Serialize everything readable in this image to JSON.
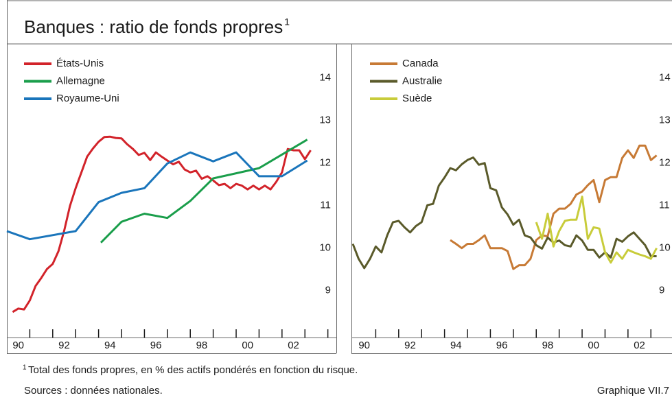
{
  "title": "Banques : ratio de fonds propres",
  "title_note": "1",
  "chart_data": [
    {
      "type": "line",
      "legend": "upper left",
      "xlim": [
        1990,
        2004.37
      ],
      "ylim": [
        7.9,
        14.8
      ],
      "yticks": [
        9,
        10,
        11,
        12,
        13,
        14
      ],
      "xticks": [
        {
          "value": 1990.5,
          "label": "90"
        },
        {
          "value": 1992.5,
          "label": "92"
        },
        {
          "value": 1994.5,
          "label": "94"
        },
        {
          "value": 1996.5,
          "label": "96"
        },
        {
          "value": 1998.5,
          "label": "98"
        },
        {
          "value": 2000.5,
          "label": "00"
        },
        {
          "value": 2002.5,
          "label": "02"
        }
      ],
      "xtick_marks": [
        1991,
        1992,
        1993,
        1994,
        1995,
        1996,
        1997,
        1998,
        1999,
        2000,
        2001,
        2002,
        2003,
        2004
      ],
      "series": [
        {
          "name": "États-Unis",
          "color": "#d2232a",
          "x": [
            1990.25,
            1990.5,
            1990.75,
            1991,
            1991.25,
            1991.5,
            1991.75,
            1992,
            1992.25,
            1992.5,
            1992.75,
            1993,
            1993.25,
            1993.5,
            1993.75,
            1994,
            1994.25,
            1994.5,
            1994.75,
            1995,
            1995.25,
            1995.5,
            1995.75,
            1996,
            1996.25,
            1996.5,
            1996.75,
            1997,
            1997.25,
            1997.5,
            1997.75,
            1998,
            1998.25,
            1998.5,
            1998.75,
            1999,
            1999.25,
            1999.5,
            1999.75,
            2000,
            2000.25,
            2000.5,
            2000.75,
            2001,
            2001.25,
            2001.5,
            2001.75,
            2002,
            2002.25,
            2002.5,
            2002.75,
            2003,
            2003.25
          ],
          "values": [
            8.5,
            8.58,
            8.56,
            8.77,
            9.11,
            9.3,
            9.51,
            9.63,
            9.93,
            10.41,
            10.99,
            11.41,
            11.78,
            12.15,
            12.34,
            12.5,
            12.61,
            12.62,
            12.59,
            12.58,
            12.44,
            12.33,
            12.19,
            12.24,
            12.07,
            12.25,
            12.15,
            12.06,
            11.97,
            12.03,
            11.85,
            11.78,
            11.82,
            11.63,
            11.69,
            11.59,
            11.48,
            11.51,
            11.41,
            11.51,
            11.47,
            11.38,
            11.47,
            11.38,
            11.47,
            11.38,
            11.56,
            11.78,
            12.33,
            12.3,
            12.3,
            12.09,
            12.3
          ]
        },
        {
          "name": "Allemagne",
          "color": "#1a9e4b",
          "x": [
            1994.1,
            1995,
            1996,
            1997,
            1998,
            1999,
            2000,
            2001,
            2002,
            2003.1
          ],
          "values": [
            10.13,
            10.62,
            10.81,
            10.71,
            11.11,
            11.64,
            11.76,
            11.88,
            12.2,
            12.55
          ]
        },
        {
          "name": "Royaume-Uni",
          "color": "#1a75bb",
          "x": [
            1990,
            1991,
            1993,
            1994,
            1995,
            1996,
            1997,
            1998,
            1999,
            2000,
            2001,
            2002,
            2003.1
          ],
          "values": [
            10.4,
            10.21,
            10.4,
            11.08,
            11.3,
            11.41,
            11.99,
            12.25,
            12.04,
            12.25,
            11.69,
            11.69,
            12.06
          ]
        }
      ]
    },
    {
      "type": "line",
      "legend": "upper left",
      "xlim": [
        1990,
        2003.92
      ],
      "ylim": [
        7.9,
        14.8
      ],
      "yticks": [
        9,
        10,
        11,
        12,
        13,
        14
      ],
      "xticks": [
        {
          "value": 1990.5,
          "label": "90"
        },
        {
          "value": 1992.5,
          "label": "92"
        },
        {
          "value": 1994.5,
          "label": "94"
        },
        {
          "value": 1996.5,
          "label": "96"
        },
        {
          "value": 1998.5,
          "label": "98"
        },
        {
          "value": 2000.5,
          "label": "00"
        },
        {
          "value": 2002.5,
          "label": "02"
        }
      ],
      "xtick_marks": [
        1991,
        1992,
        1993,
        1994,
        1995,
        1996,
        1997,
        1998,
        1999,
        2000,
        2001,
        2002,
        2003
      ],
      "series": [
        {
          "name": "Canada",
          "color": "#c77a35",
          "x": [
            1994.25,
            1994.5,
            1994.75,
            1995,
            1995.25,
            1995.5,
            1995.75,
            1996,
            1996.25,
            1996.5,
            1996.75,
            1997,
            1997.25,
            1997.5,
            1997.75,
            1998,
            1998.25,
            1998.5,
            1998.75,
            1999,
            1999.25,
            1999.5,
            1999.75,
            2000,
            2000.25,
            2000.5,
            2000.75,
            2001,
            2001.25,
            2001.5,
            2001.75,
            2002,
            2002.25,
            2002.5,
            2002.75,
            2003,
            2003.25
          ],
          "values": [
            10.19,
            10.1,
            10.0,
            10.1,
            10.1,
            10.19,
            10.3,
            10.0,
            10.0,
            10.0,
            9.93,
            9.51,
            9.6,
            9.6,
            9.75,
            10.19,
            10.3,
            10.28,
            10.81,
            10.93,
            10.93,
            11.04,
            11.26,
            11.33,
            11.48,
            11.6,
            11.08,
            11.6,
            11.67,
            11.67,
            12.12,
            12.3,
            12.12,
            12.41,
            12.41,
            12.07,
            12.18
          ]
        },
        {
          "name": "Australie",
          "color": "#5a5a2a",
          "x": [
            1990,
            1990.25,
            1990.5,
            1990.75,
            1991,
            1991.25,
            1991.5,
            1991.75,
            1992,
            1992.25,
            1992.5,
            1992.75,
            1993,
            1993.25,
            1993.5,
            1993.75,
            1994,
            1994.25,
            1994.5,
            1994.75,
            1995,
            1995.25,
            1995.5,
            1995.75,
            1996,
            1996.25,
            1996.5,
            1996.75,
            1997,
            1997.25,
            1997.5,
            1997.75,
            1998,
            1998.25,
            1998.5,
            1998.75,
            1999,
            1999.25,
            1999.5,
            1999.75,
            2000,
            2000.25,
            2000.5,
            2000.75,
            2001,
            2001.25,
            2001.5,
            2001.75,
            2002,
            2002.25,
            2002.5,
            2002.75,
            2003,
            2003.25
          ],
          "values": [
            10.1,
            9.75,
            9.53,
            9.75,
            10.04,
            9.9,
            10.3,
            10.61,
            10.64,
            10.49,
            10.37,
            10.52,
            10.61,
            11.01,
            11.04,
            11.47,
            11.66,
            11.88,
            11.83,
            11.97,
            12.07,
            12.13,
            11.96,
            12.0,
            11.41,
            11.36,
            10.96,
            10.79,
            10.55,
            10.67,
            10.3,
            10.25,
            10.07,
            9.99,
            10.25,
            10.13,
            10.18,
            10.07,
            10.04,
            10.3,
            10.18,
            9.96,
            9.96,
            9.78,
            9.9,
            9.78,
            10.22,
            10.15,
            10.28,
            10.37,
            10.22,
            10.07,
            9.81,
            9.81
          ]
        },
        {
          "name": "Suède",
          "color": "#c8cc3a",
          "x": [
            1998,
            1998.25,
            1998.5,
            1998.75,
            1999,
            1999.25,
            1999.5,
            1999.75,
            2000,
            2000.25,
            2000.5,
            2000.75,
            2001,
            2001.25,
            2001.5,
            2001.75,
            2002,
            2002.25,
            2002.5,
            2002.75,
            2003,
            2003.25
          ],
          "values": [
            10.61,
            10.22,
            10.81,
            10.04,
            10.4,
            10.64,
            10.67,
            10.67,
            11.21,
            10.22,
            10.49,
            10.46,
            9.9,
            9.66,
            9.9,
            9.75,
            9.96,
            9.9,
            9.85,
            9.81,
            9.75,
            10.0
          ]
        }
      ]
    }
  ],
  "footnote_marker": "1",
  "footnote": "Total des fonds propres, en % des actifs pondérés en fonction du risque.",
  "sources": "Sources : données nationales.",
  "figure_label": "Graphique VII.7"
}
